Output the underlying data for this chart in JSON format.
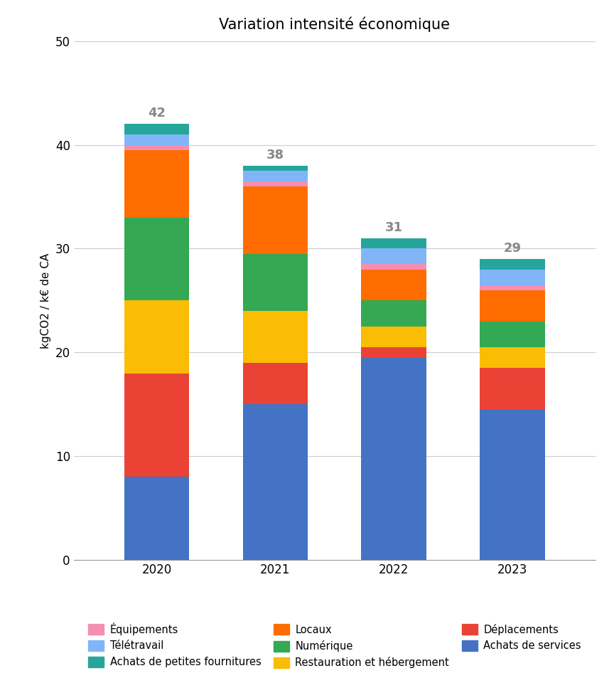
{
  "title": "Variation intensité économique",
  "ylabel": "kgCO2 / k€ de CA",
  "years": [
    "2020",
    "2021",
    "2022",
    "2023"
  ],
  "totals": [
    42,
    38,
    31,
    29
  ],
  "segment_order": [
    "Achats de services",
    "Déplacements",
    "Restauration et hébergement",
    "Numérique",
    "Locaux",
    "Équipements",
    "Télétravail",
    "Achats de petites fournitures"
  ],
  "segments": {
    "Achats de services": [
      8.0,
      15.0,
      19.5,
      14.5
    ],
    "Déplacements": [
      10.0,
      4.0,
      1.0,
      4.0
    ],
    "Restauration et hébergement": [
      7.0,
      5.0,
      2.0,
      2.0
    ],
    "Numérique": [
      8.0,
      5.5,
      2.5,
      2.5
    ],
    "Locaux": [
      6.5,
      6.5,
      3.0,
      3.0
    ],
    "Équipements": [
      0.5,
      0.5,
      0.5,
      0.5
    ],
    "Télétravail": [
      1.0,
      1.0,
      1.5,
      1.5
    ],
    "Achats de petites fournitures": [
      1.0,
      0.5,
      1.0,
      1.0
    ]
  },
  "colors": {
    "Achats de services": "#4472C4",
    "Déplacements": "#EA4335",
    "Restauration et hébergement": "#FBBC04",
    "Numérique": "#34A853",
    "Locaux": "#FF6D00",
    "Équipements": "#F48FB1",
    "Télétravail": "#82B5F8",
    "Achats de petites fournitures": "#26A69A"
  },
  "legend_order": [
    "Équipements",
    "Télétravail",
    "Achats de petites fournitures",
    "Locaux",
    "Numérique",
    "Restauration et hébergement",
    "Déplacements",
    "Achats de services"
  ],
  "ylim": [
    0,
    50
  ],
  "yticks": [
    0,
    10,
    20,
    30,
    40,
    50
  ],
  "bar_width": 0.55,
  "background_color": "#ffffff",
  "grid_color": "#cccccc",
  "title_fontsize": 15,
  "label_fontsize": 11,
  "tick_fontsize": 12,
  "total_fontsize": 13,
  "total_color": "#888888",
  "legend_fontsize": 10.5
}
